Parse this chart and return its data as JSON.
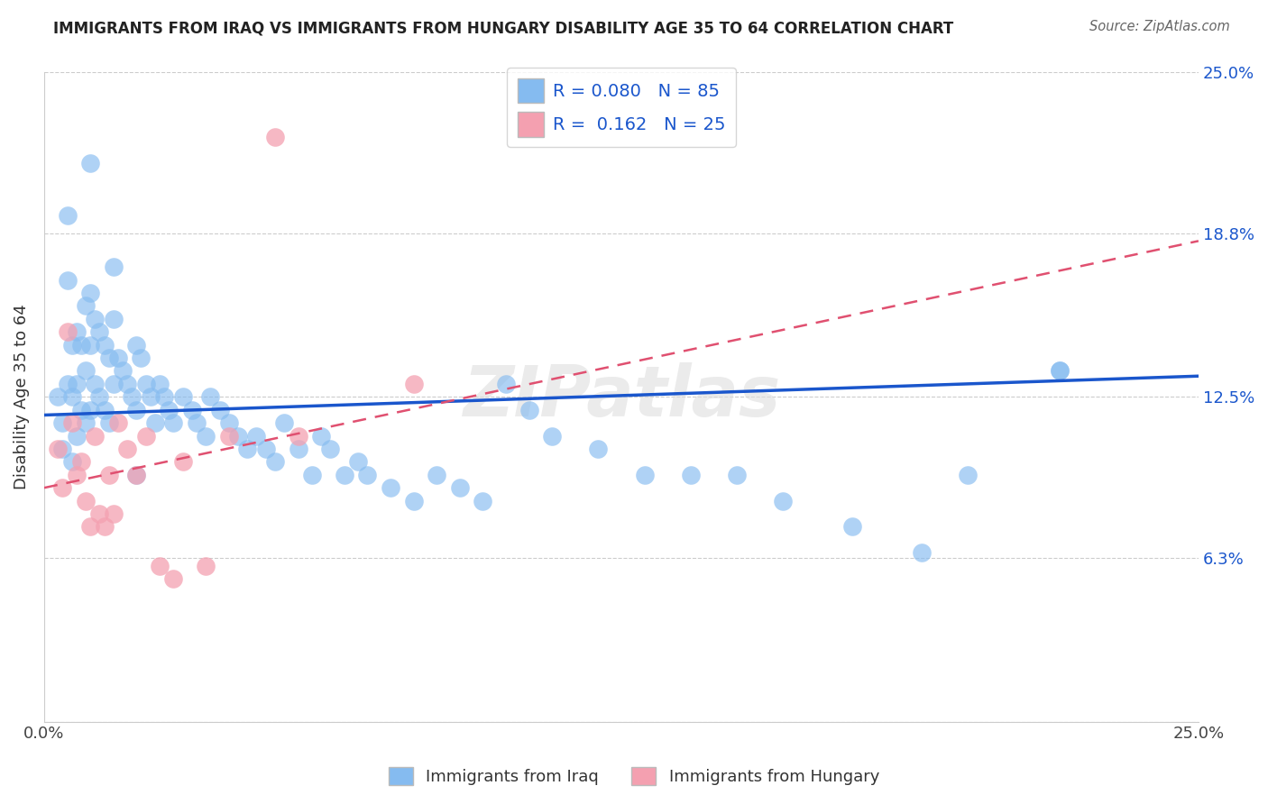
{
  "title": "IMMIGRANTS FROM IRAQ VS IMMIGRANTS FROM HUNGARY DISABILITY AGE 35 TO 64 CORRELATION CHART",
  "source": "Source: ZipAtlas.com",
  "ylabel": "Disability Age 35 to 64",
  "x_min": 0.0,
  "x_max": 0.25,
  "y_min": 0.0,
  "y_max": 0.25,
  "y_tick_labels_right": [
    "25.0%",
    "18.8%",
    "12.5%",
    "6.3%",
    ""
  ],
  "y_tick_positions_right": [
    0.25,
    0.188,
    0.125,
    0.063,
    0.0
  ],
  "watermark": "ZIPatlas",
  "iraq_color": "#85BBF0",
  "hungary_color": "#F4A0B0",
  "iraq_line_color": "#1A56CC",
  "hungary_line_color": "#E05070",
  "iraq_R": 0.08,
  "iraq_N": 85,
  "hungary_R": 0.162,
  "hungary_N": 25,
  "iraq_scatter_x": [
    0.003,
    0.004,
    0.004,
    0.005,
    0.005,
    0.005,
    0.006,
    0.006,
    0.006,
    0.007,
    0.007,
    0.007,
    0.008,
    0.008,
    0.009,
    0.009,
    0.009,
    0.01,
    0.01,
    0.01,
    0.011,
    0.011,
    0.012,
    0.012,
    0.013,
    0.013,
    0.014,
    0.014,
    0.015,
    0.015,
    0.016,
    0.017,
    0.018,
    0.019,
    0.02,
    0.02,
    0.021,
    0.022,
    0.023,
    0.024,
    0.025,
    0.026,
    0.027,
    0.028,
    0.03,
    0.032,
    0.033,
    0.035,
    0.036,
    0.038,
    0.04,
    0.042,
    0.044,
    0.046,
    0.048,
    0.05,
    0.052,
    0.055,
    0.058,
    0.06,
    0.062,
    0.065,
    0.068,
    0.07,
    0.075,
    0.08,
    0.085,
    0.09,
    0.095,
    0.1,
    0.105,
    0.11,
    0.12,
    0.13,
    0.14,
    0.15,
    0.16,
    0.175,
    0.19,
    0.2,
    0.22,
    0.01,
    0.015,
    0.02,
    0.22
  ],
  "iraq_scatter_y": [
    0.125,
    0.115,
    0.105,
    0.195,
    0.17,
    0.13,
    0.145,
    0.125,
    0.1,
    0.15,
    0.13,
    0.11,
    0.145,
    0.12,
    0.16,
    0.135,
    0.115,
    0.165,
    0.145,
    0.12,
    0.155,
    0.13,
    0.15,
    0.125,
    0.145,
    0.12,
    0.14,
    0.115,
    0.155,
    0.13,
    0.14,
    0.135,
    0.13,
    0.125,
    0.145,
    0.12,
    0.14,
    0.13,
    0.125,
    0.115,
    0.13,
    0.125,
    0.12,
    0.115,
    0.125,
    0.12,
    0.115,
    0.11,
    0.125,
    0.12,
    0.115,
    0.11,
    0.105,
    0.11,
    0.105,
    0.1,
    0.115,
    0.105,
    0.095,
    0.11,
    0.105,
    0.095,
    0.1,
    0.095,
    0.09,
    0.085,
    0.095,
    0.09,
    0.085,
    0.13,
    0.12,
    0.11,
    0.105,
    0.095,
    0.095,
    0.095,
    0.085,
    0.075,
    0.065,
    0.095,
    0.135,
    0.215,
    0.175,
    0.095,
    0.135
  ],
  "hungary_scatter_x": [
    0.003,
    0.004,
    0.005,
    0.006,
    0.007,
    0.008,
    0.009,
    0.01,
    0.011,
    0.012,
    0.013,
    0.014,
    0.015,
    0.016,
    0.018,
    0.02,
    0.022,
    0.025,
    0.028,
    0.03,
    0.035,
    0.04,
    0.055,
    0.08,
    0.05
  ],
  "hungary_scatter_y": [
    0.105,
    0.09,
    0.15,
    0.115,
    0.095,
    0.1,
    0.085,
    0.075,
    0.11,
    0.08,
    0.075,
    0.095,
    0.08,
    0.115,
    0.105,
    0.095,
    0.11,
    0.06,
    0.055,
    0.1,
    0.06,
    0.11,
    0.11,
    0.13,
    0.225
  ],
  "iraq_line_x0": 0.0,
  "iraq_line_x1": 0.25,
  "iraq_line_y0": 0.118,
  "iraq_line_y1": 0.133,
  "hungary_line_x0": 0.0,
  "hungary_line_x1": 0.25,
  "hungary_line_y0": 0.09,
  "hungary_line_y1": 0.185
}
